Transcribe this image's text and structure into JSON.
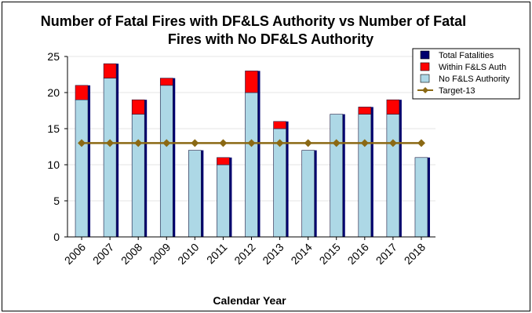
{
  "chart_data": {
    "type": "bar",
    "title_lines": [
      "Number of Fatal Fires with DF&LS Authority vs Number of Fatal",
      "Fires with No DF&LS Authority"
    ],
    "xlabel": "Calendar Year",
    "ylabel": "",
    "ylim": [
      0,
      25
    ],
    "yticks": [
      0,
      5,
      10,
      15,
      20,
      25
    ],
    "grid": true,
    "legend_position": "top-right",
    "categories": [
      "2006",
      "2007",
      "2008",
      "2009",
      "2010",
      "2011",
      "2012",
      "2013",
      "2014",
      "2015",
      "2016",
      "2017",
      "2018"
    ],
    "series": [
      {
        "name": "Total Fatalities",
        "values": [
          21,
          24,
          19,
          22,
          12,
          11,
          23,
          16,
          12,
          17,
          18,
          19,
          11
        ],
        "color": "#00006e"
      },
      {
        "name": "Within F&LS Auth",
        "values": [
          2,
          2,
          2,
          1,
          0,
          1,
          3,
          1,
          0,
          0,
          1,
          2,
          0
        ],
        "color": "#ff0000"
      },
      {
        "name": "No F&LS Authority",
        "values": [
          19,
          22,
          17,
          21,
          12,
          10,
          20,
          15,
          12,
          17,
          17,
          17,
          11
        ],
        "color": "#add8e6"
      },
      {
        "name": "Target-13",
        "values": [
          13,
          13,
          13,
          13,
          13,
          13,
          13,
          13,
          13,
          13,
          13,
          13,
          13
        ],
        "color": "#8b6914",
        "kind": "line"
      }
    ]
  }
}
